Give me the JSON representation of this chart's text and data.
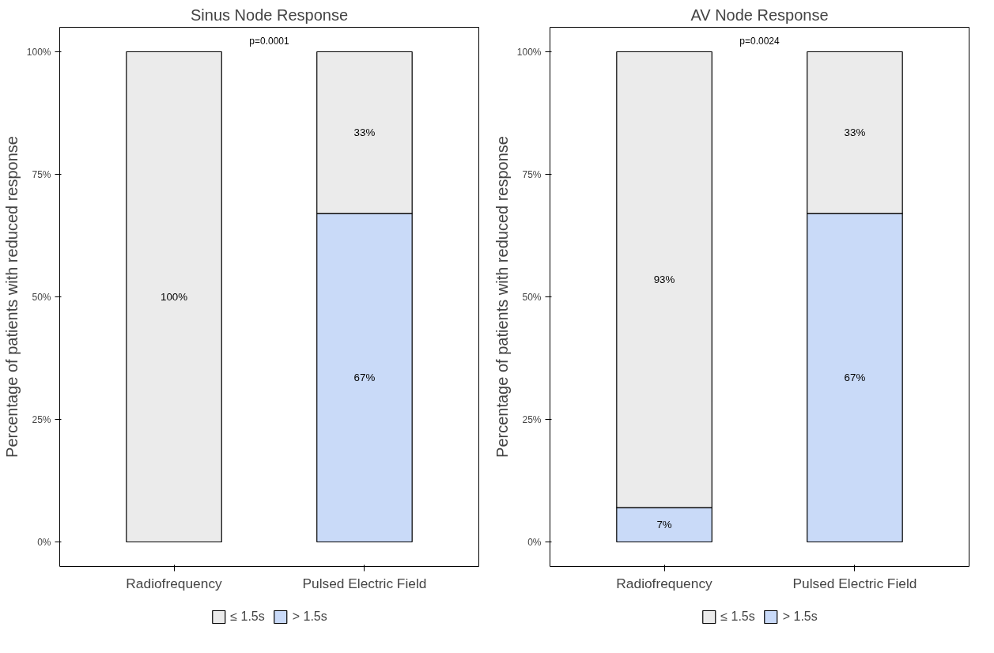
{
  "chart_data": [
    {
      "type": "bar",
      "title": "Sinus Node Response",
      "ylabel": "Percentage of patients with reduced response",
      "categories": [
        "Radiofrequency",
        "Pulsed Electric Field"
      ],
      "stacked": true,
      "series": [
        {
          "name": "> 1.5s",
          "color": "#c9daf8",
          "values": [
            0,
            67
          ],
          "value_labels": [
            null,
            "67%"
          ]
        },
        {
          "name": "≤ 1.5s",
          "color": "#ebebeb",
          "values": [
            100,
            33
          ],
          "value_labels": [
            "100%",
            "33%"
          ]
        }
      ],
      "ylim": [
        -5,
        105
      ],
      "yticks": [
        {
          "value": 0,
          "label": "0%"
        },
        {
          "value": 25,
          "label": "25%"
        },
        {
          "value": 50,
          "label": "50%"
        },
        {
          "value": 75,
          "label": "75%"
        },
        {
          "value": 100,
          "label": "100%"
        }
      ],
      "annotations": [
        "p=0.0001"
      ],
      "legend": "bottom",
      "grid": false
    },
    {
      "type": "bar",
      "title": "AV Node Response",
      "ylabel": "Percentage of patients with reduced response",
      "categories": [
        "Radiofrequency",
        "Pulsed Electric Field"
      ],
      "stacked": true,
      "series": [
        {
          "name": "> 1.5s",
          "color": "#c9daf8",
          "values": [
            7,
            67
          ],
          "value_labels": [
            "7%",
            "67%"
          ]
        },
        {
          "name": "≤ 1.5s",
          "color": "#ebebeb",
          "values": [
            93,
            33
          ],
          "value_labels": [
            "93%",
            "33%"
          ]
        }
      ],
      "ylim": [
        -5,
        105
      ],
      "yticks": [
        {
          "value": 0,
          "label": "0%"
        },
        {
          "value": 25,
          "label": "25%"
        },
        {
          "value": 50,
          "label": "50%"
        },
        {
          "value": 75,
          "label": "75%"
        },
        {
          "value": 100,
          "label": "100%"
        }
      ],
      "annotations": [
        "p=0.0024"
      ],
      "legend": "bottom",
      "grid": false
    }
  ]
}
